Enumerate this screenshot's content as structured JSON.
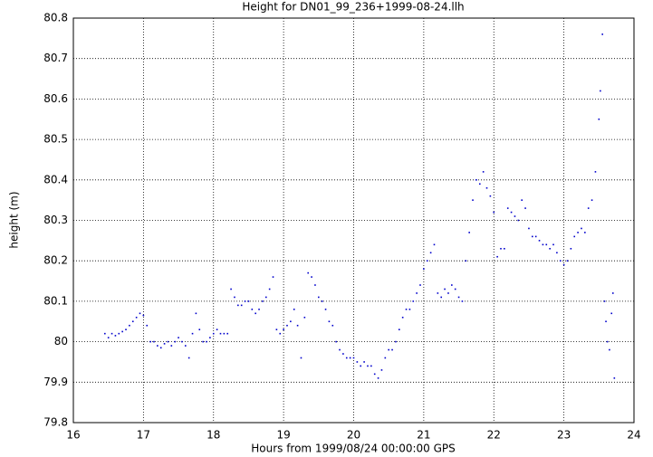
{
  "chart_data": {
    "type": "scatter",
    "title": "Height for DN01_99_236+1999-08-24.llh",
    "x_label": "Hours from 1999/08/24 00:00:00 GPS",
    "y_label": "height (m)",
    "xlim": [
      16,
      24
    ],
    "ylim": [
      79.8,
      80.8
    ],
    "xticks": [
      16,
      17,
      18,
      19,
      20,
      21,
      22,
      23,
      24
    ],
    "yticks": [
      79.8,
      79.9,
      80,
      80.1,
      80.2,
      80.3,
      80.4,
      80.5,
      80.6,
      80.7,
      80.8
    ],
    "grid": true,
    "color": "#0000cc",
    "x": [
      16.45,
      16.5,
      16.55,
      16.6,
      16.65,
      16.7,
      16.75,
      16.8,
      16.85,
      16.9,
      16.95,
      17.0,
      17.05,
      17.1,
      17.15,
      17.2,
      17.25,
      17.3,
      17.35,
      17.4,
      17.45,
      17.5,
      17.55,
      17.6,
      17.65,
      17.7,
      17.75,
      17.8,
      17.85,
      17.9,
      17.95,
      18.0,
      18.05,
      18.1,
      18.15,
      18.2,
      18.25,
      18.3,
      18.35,
      18.4,
      18.45,
      18.5,
      18.55,
      18.6,
      18.65,
      18.7,
      18.75,
      18.8,
      18.85,
      18.9,
      18.95,
      19.0,
      19.05,
      19.1,
      19.15,
      19.2,
      19.25,
      19.3,
      19.35,
      19.4,
      19.45,
      19.5,
      19.55,
      19.6,
      19.65,
      19.7,
      19.75,
      19.8,
      19.85,
      19.9,
      19.95,
      20.0,
      20.05,
      20.1,
      20.15,
      20.2,
      20.25,
      20.3,
      20.35,
      20.4,
      20.45,
      20.5,
      20.55,
      20.6,
      20.65,
      20.7,
      20.75,
      20.8,
      20.85,
      20.9,
      20.95,
      21.0,
      21.05,
      21.1,
      21.15,
      21.2,
      21.25,
      21.3,
      21.35,
      21.4,
      21.45,
      21.5,
      21.55,
      21.6,
      21.65,
      21.7,
      21.75,
      21.8,
      21.85,
      21.9,
      21.95,
      22.0,
      22.05,
      22.1,
      22.15,
      22.2,
      22.25,
      22.3,
      22.35,
      22.4,
      22.45,
      22.5,
      22.55,
      22.6,
      22.65,
      22.7,
      22.75,
      22.8,
      22.85,
      22.9,
      22.95,
      23.0,
      23.05,
      23.1,
      23.15,
      23.2,
      23.25,
      23.3,
      23.35,
      23.4,
      23.45,
      23.5,
      23.52,
      23.55,
      23.58,
      23.6,
      23.62,
      23.65,
      23.68,
      23.7,
      23.72
    ],
    "values": [
      80.02,
      80.01,
      80.02,
      80.015,
      80.02,
      80.025,
      80.03,
      80.04,
      80.05,
      80.06,
      80.07,
      80.065,
      80.04,
      80.0,
      80.0,
      79.99,
      79.985,
      79.995,
      80.0,
      79.99,
      80.0,
      80.01,
      80.0,
      79.99,
      79.96,
      80.02,
      80.07,
      80.03,
      80.0,
      80.0,
      80.01,
      80.02,
      80.03,
      80.02,
      80.02,
      80.02,
      80.13,
      80.11,
      80.09,
      80.09,
      80.1,
      80.1,
      80.08,
      80.07,
      80.08,
      80.1,
      80.11,
      80.13,
      80.16,
      80.03,
      80.02,
      80.03,
      80.04,
      80.05,
      80.08,
      80.04,
      79.96,
      80.06,
      80.17,
      80.16,
      80.14,
      80.11,
      80.1,
      80.08,
      80.05,
      80.04,
      80.0,
      79.98,
      79.97,
      79.96,
      79.96,
      79.96,
      79.95,
      79.94,
      79.95,
      79.94,
      79.94,
      79.92,
      79.91,
      79.93,
      79.96,
      79.98,
      79.98,
      80.0,
      80.03,
      80.06,
      80.08,
      80.08,
      80.1,
      80.12,
      80.14,
      80.18,
      80.2,
      80.22,
      80.24,
      80.12,
      80.11,
      80.13,
      80.12,
      80.14,
      80.13,
      80.11,
      80.1,
      80.2,
      80.27,
      80.35,
      80.4,
      80.39,
      80.42,
      80.38,
      80.36,
      80.32,
      80.21,
      80.23,
      80.23,
      80.33,
      80.32,
      80.31,
      80.3,
      80.35,
      80.33,
      80.28,
      80.26,
      80.26,
      80.25,
      80.24,
      80.24,
      80.23,
      80.24,
      80.22,
      80.2,
      80.19,
      80.2,
      80.23,
      80.26,
      80.27,
      80.28,
      80.27,
      80.33,
      80.35,
      80.42,
      80.55,
      80.62,
      80.76,
      80.1,
      80.05,
      80.0,
      79.98,
      80.07,
      80.12,
      79.91
    ]
  }
}
